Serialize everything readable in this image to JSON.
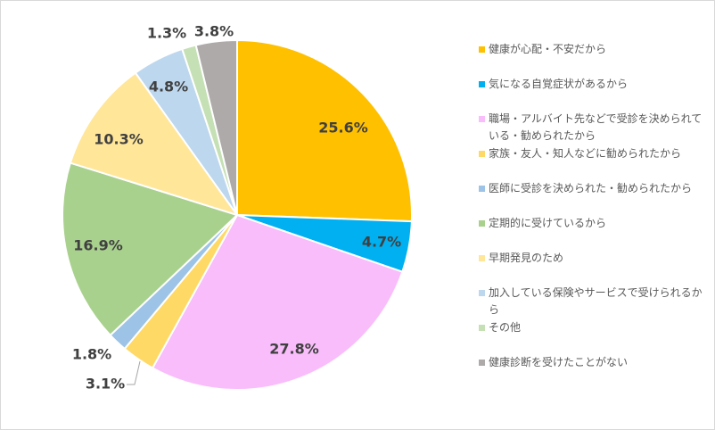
{
  "colors": {
    "background": "#ffffff",
    "border": "#d9d9d9",
    "label_text": "#404040",
    "legend_text": "#595959",
    "leader_line": "#a6a6a6"
  },
  "chart_data": {
    "type": "pie",
    "start_angle_deg": 0,
    "direction": "clockwise",
    "legend_position": "right",
    "slices": [
      {
        "label": "健康が心配・不安だから",
        "value": 25.6,
        "data_label": "25.6%",
        "color": "#ffc000"
      },
      {
        "label": "気になる自覚症状があるから",
        "value": 4.7,
        "data_label": "4.7%",
        "color": "#00b0f0"
      },
      {
        "label": "職場・アルバイト先などで受診を決められている・勧められたから",
        "value": 27.8,
        "data_label": "27.8%",
        "color": "#f8bdfa"
      },
      {
        "label": "家族・友人・知人などに勧められたから",
        "value": 3.1,
        "data_label": "3.1%",
        "color": "#ffd966"
      },
      {
        "label": "医師に受診を決められた・勧められたから",
        "value": 1.8,
        "data_label": "1.8%",
        "color": "#9dc3e6"
      },
      {
        "label": "定期的に受けているから",
        "value": 16.9,
        "data_label": "16.9%",
        "color": "#a9d18e"
      },
      {
        "label": "早期発見のため",
        "value": 10.3,
        "data_label": "10.3%",
        "color": "#ffe699"
      },
      {
        "label": "加入している保険やサービスで受けられるから",
        "value": 4.8,
        "data_label": "4.8%",
        "color": "#bdd7ee"
      },
      {
        "label": "その他",
        "value": 1.3,
        "data_label": "1.3%",
        "color": "#c5e0b4"
      },
      {
        "label": "健康診断を受けたことがない",
        "value": 3.8,
        "data_label": "3.8%",
        "color": "#aeaaaa"
      }
    ]
  }
}
